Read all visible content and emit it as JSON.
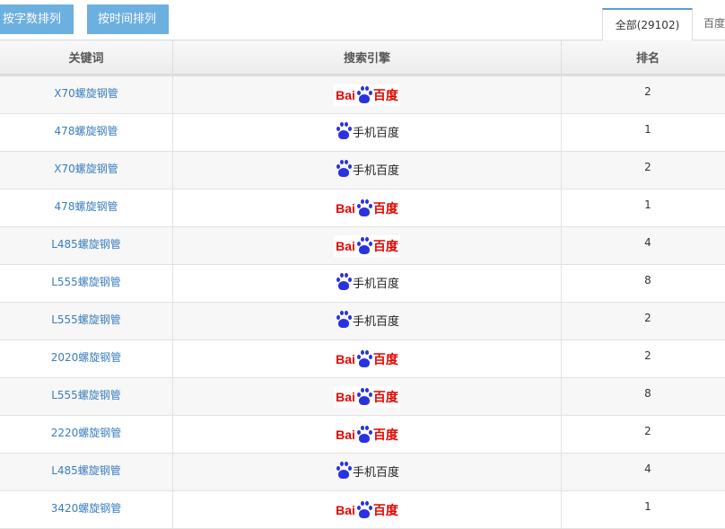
{
  "toolbar": {
    "sort_by_length": "按字数排列",
    "sort_by_time": "按时间排列"
  },
  "tabs": [
    {
      "label": "全部(29102)",
      "active": true
    },
    {
      "label": "百度"
    }
  ],
  "table": {
    "headers": [
      "关键词",
      "搜索引擎",
      "排名"
    ],
    "rows": [
      {
        "keyword": "X70螺旋钢管",
        "engine": "baidu",
        "rank": "2"
      },
      {
        "keyword": "478螺旋钢管",
        "engine": "mobile",
        "rank": "1"
      },
      {
        "keyword": "X70螺旋钢管",
        "engine": "mobile",
        "rank": "2"
      },
      {
        "keyword": "478螺旋钢管",
        "engine": "baidu",
        "rank": "1"
      },
      {
        "keyword": "L485螺旋钢管",
        "engine": "baidu",
        "rank": "4"
      },
      {
        "keyword": "L555螺旋钢管",
        "engine": "mobile",
        "rank": "8"
      },
      {
        "keyword": "L555螺旋钢管",
        "engine": "mobile",
        "rank": "2"
      },
      {
        "keyword": "2020螺旋钢管",
        "engine": "baidu",
        "rank": "2"
      },
      {
        "keyword": "L555螺旋钢管",
        "engine": "baidu",
        "rank": "8"
      },
      {
        "keyword": "2220螺旋钢管",
        "engine": "baidu",
        "rank": "2"
      },
      {
        "keyword": "L485螺旋钢管",
        "engine": "mobile",
        "rank": "4"
      },
      {
        "keyword": "3420螺旋钢管",
        "engine": "baidu",
        "rank": "1"
      }
    ]
  },
  "engines": {
    "baidu": {
      "text_left": "Bai",
      "text_right": "百度"
    },
    "mobile": {
      "text": "手机百度"
    }
  },
  "colors": {
    "button": "#6cb0e0",
    "link": "#3a7dbf",
    "baidu_red": "#e10601",
    "baidu_blue": "#2932e1"
  }
}
